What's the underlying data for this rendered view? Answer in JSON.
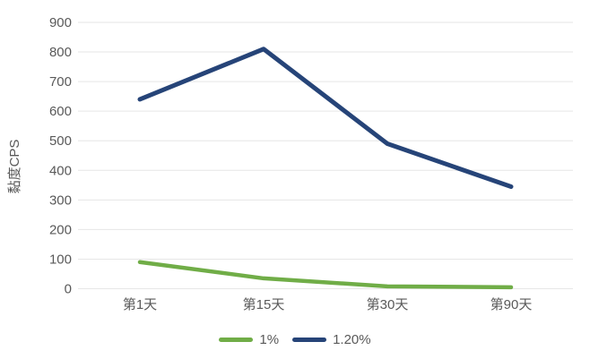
{
  "chart_data": {
    "type": "line",
    "categories": [
      "第1天",
      "第15天",
      "第30天",
      "第90天"
    ],
    "series": [
      {
        "name": "1%",
        "color": "#70ad47",
        "values": [
          90,
          35,
          8,
          5
        ]
      },
      {
        "name": "1.20%",
        "color": "#264478",
        "values": [
          640,
          810,
          490,
          345
        ]
      }
    ],
    "title": "",
    "xlabel": "",
    "ylabel": "黏度CPS",
    "ylim": [
      0,
      900
    ],
    "ytick_step": 100,
    "grid": true,
    "legend_position": "bottom"
  },
  "colors": {
    "background": "#ffffff",
    "gridline": "#e6e6e6",
    "axis_text": "#595959"
  }
}
